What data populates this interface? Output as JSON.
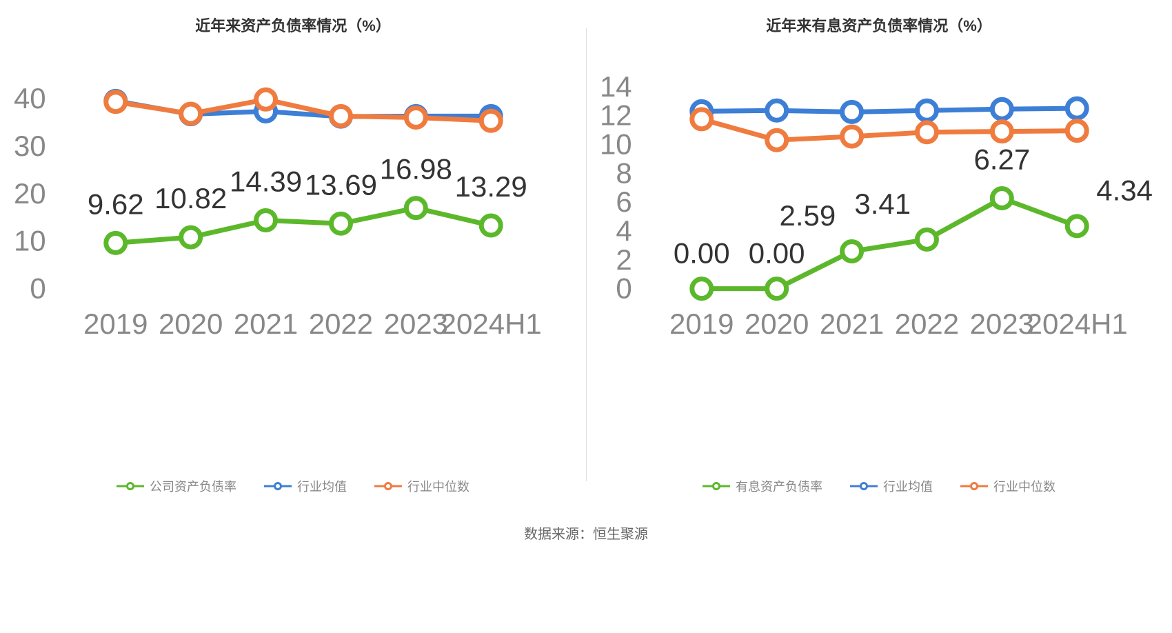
{
  "footer_text": "数据来源：恒生聚源",
  "colors": {
    "company": "#5cb82b",
    "avg": "#3d7fd6",
    "median": "#f07b3f",
    "text": "#333333",
    "axis_text": "#888888",
    "grid": "#e8e8e8",
    "background": "#ffffff"
  },
  "left_chart": {
    "type": "line",
    "title": "近年来资产负债率情况（%）",
    "categories": [
      "2019",
      "2020",
      "2021",
      "2022",
      "2023",
      "2024H1"
    ],
    "ylim": [
      0,
      44
    ],
    "yticks": [
      0,
      10,
      20,
      30,
      40
    ],
    "tick_fontsize": 18,
    "title_fontsize": 22,
    "label_fontsize": 18,
    "line_width": 3,
    "marker_radius": 6,
    "marker_fill": "#ffffff",
    "marker_stroke_width": 3,
    "series": [
      {
        "key": "company",
        "name": "公司资产负债率",
        "color": "#5cb82b",
        "values": [
          9.62,
          10.82,
          14.39,
          13.69,
          16.98,
          13.29
        ],
        "show_labels": true,
        "label_offsets": [
          {
            "dx": 0,
            "dy": -18,
            "anchor": "middle"
          },
          {
            "dx": 0,
            "dy": -18,
            "anchor": "middle"
          },
          {
            "dx": 0,
            "dy": -18,
            "anchor": "middle"
          },
          {
            "dx": 0,
            "dy": -18,
            "anchor": "middle"
          },
          {
            "dx": 0,
            "dy": -18,
            "anchor": "middle"
          },
          {
            "dx": 0,
            "dy": -18,
            "anchor": "middle"
          }
        ]
      },
      {
        "key": "avg",
        "name": "行业均值",
        "color": "#3d7fd6",
        "values": [
          39.5,
          36.7,
          37.3,
          36.2,
          36.3,
          36.3
        ],
        "show_labels": false
      },
      {
        "key": "median",
        "name": "行业中位数",
        "color": "#f07b3f",
        "values": [
          39.3,
          36.8,
          39.8,
          36.3,
          36.0,
          35.3
        ],
        "show_labels": false
      }
    ],
    "legend": [
      {
        "label": "公司资产负债率",
        "color": "#5cb82b"
      },
      {
        "label": "行业均值",
        "color": "#3d7fd6"
      },
      {
        "label": "行业中位数",
        "color": "#f07b3f"
      }
    ]
  },
  "right_chart": {
    "type": "line",
    "title": "近年来有息资产负债率情况（%）",
    "categories": [
      "2019",
      "2020",
      "2021",
      "2022",
      "2023",
      "2024H1"
    ],
    "ylim": [
      0,
      14.5
    ],
    "yticks": [
      0,
      2,
      4,
      6,
      8,
      10,
      12,
      14
    ],
    "tick_fontsize": 18,
    "title_fontsize": 22,
    "label_fontsize": 18,
    "line_width": 3,
    "marker_radius": 6,
    "marker_fill": "#ffffff",
    "marker_stroke_width": 3,
    "series": [
      {
        "key": "company",
        "name": "有息资产负债率",
        "color": "#5cb82b",
        "values": [
          0.0,
          0.0,
          2.59,
          3.41,
          6.27,
          4.34
        ],
        "value_labels": [
          "0.00",
          "0.00",
          "2.59",
          "3.41",
          "6.27",
          "4.34"
        ],
        "show_labels": true,
        "label_offsets": [
          {
            "dx": 0,
            "dy": -16,
            "anchor": "middle"
          },
          {
            "dx": 0,
            "dy": -16,
            "anchor": "middle"
          },
          {
            "dx": -10,
            "dy": -16,
            "anchor": "end"
          },
          {
            "dx": -10,
            "dy": -16,
            "anchor": "end"
          },
          {
            "dx": 0,
            "dy": -18,
            "anchor": "middle"
          },
          {
            "dx": 12,
            "dy": -16,
            "anchor": "start"
          }
        ]
      },
      {
        "key": "avg",
        "name": "行业均值",
        "color": "#3d7fd6",
        "values": [
          12.3,
          12.35,
          12.25,
          12.35,
          12.45,
          12.5
        ],
        "show_labels": false
      },
      {
        "key": "median",
        "name": "行业中位数",
        "color": "#f07b3f",
        "values": [
          11.75,
          10.3,
          10.55,
          10.85,
          10.9,
          10.95
        ],
        "show_labels": false
      }
    ],
    "legend": [
      {
        "label": "有息资产负债率",
        "color": "#5cb82b"
      },
      {
        "label": "行业均值",
        "color": "#3d7fd6"
      },
      {
        "label": "行业中位数",
        "color": "#f07b3f"
      }
    ]
  }
}
